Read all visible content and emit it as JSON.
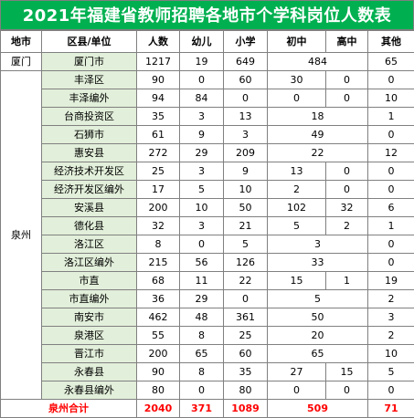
{
  "title": "2021年福建省教师招聘各地市个学科岗位人数表",
  "headers": [
    "地市",
    "区县/单位",
    "人数",
    "幼儿",
    "小学",
    "初中",
    "高中",
    "其他"
  ],
  "xiamen": {
    "city": "厦门",
    "row": {
      "unit": "厦门市",
      "total": "1217",
      "kinder": "19",
      "primary": "649",
      "secondary_merged": "484",
      "other": "65"
    }
  },
  "quanzhou": {
    "city": "泉州",
    "rows": [
      {
        "unit": "丰泽区",
        "total": "90",
        "kinder": "0",
        "primary": "60",
        "middle": "30",
        "high": "0",
        "other": "0"
      },
      {
        "unit": "丰泽编外",
        "total": "94",
        "kinder": "84",
        "primary": "0",
        "middle": "0",
        "high": "0",
        "other": "10"
      },
      {
        "unit": "台商投资区",
        "total": "35",
        "kinder": "3",
        "primary": "13",
        "secondary_merged": "18",
        "other": "1"
      },
      {
        "unit": "石狮市",
        "total": "61",
        "kinder": "9",
        "primary": "3",
        "secondary_merged": "49",
        "other": "0"
      },
      {
        "unit": "惠安县",
        "total": "272",
        "kinder": "29",
        "primary": "209",
        "secondary_merged": "22",
        "other": "12"
      },
      {
        "unit": "经济技术开发区",
        "total": "25",
        "kinder": "3",
        "primary": "9",
        "middle": "13",
        "high": "0",
        "other": "0"
      },
      {
        "unit": "经济开发区编外",
        "total": "17",
        "kinder": "5",
        "primary": "10",
        "middle": "2",
        "high": "0",
        "other": "0"
      },
      {
        "unit": "安溪县",
        "total": "200",
        "kinder": "10",
        "primary": "50",
        "middle": "102",
        "high": "32",
        "other": "6"
      },
      {
        "unit": "德化县",
        "total": "32",
        "kinder": "3",
        "primary": "21",
        "middle": "5",
        "high": "2",
        "other": "1"
      },
      {
        "unit": "洛江区",
        "total": "8",
        "kinder": "0",
        "primary": "5",
        "secondary_merged": "3",
        "other": "0"
      },
      {
        "unit": "洛江区编外",
        "total": "215",
        "kinder": "56",
        "primary": "126",
        "secondary_merged": "33",
        "other": "0"
      },
      {
        "unit": "市直",
        "total": "68",
        "kinder": "11",
        "primary": "22",
        "middle": "15",
        "high": "1",
        "other": "19"
      },
      {
        "unit": "市直编外",
        "total": "36",
        "kinder": "29",
        "primary": "0",
        "secondary_merged": "5",
        "other": "2"
      },
      {
        "unit": "南安市",
        "total": "462",
        "kinder": "48",
        "primary": "361",
        "secondary_merged": "50",
        "other": "3"
      },
      {
        "unit": "泉港区",
        "total": "55",
        "kinder": "8",
        "primary": "25",
        "secondary_merged": "20",
        "other": "2"
      },
      {
        "unit": "晋江市",
        "total": "200",
        "kinder": "65",
        "primary": "60",
        "secondary_merged": "65",
        "other": "10"
      },
      {
        "unit": "永春县",
        "total": "90",
        "kinder": "8",
        "primary": "35",
        "middle": "27",
        "high": "15",
        "other": "5"
      },
      {
        "unit": "永春县编外",
        "total": "80",
        "kinder": "0",
        "primary": "80",
        "middle": "0",
        "high": "0",
        "other": "0"
      }
    ],
    "sum": {
      "label": "泉州合计",
      "total": "2040",
      "kinder": "371",
      "primary": "1089",
      "secondary_merged": "509",
      "other": "71"
    }
  }
}
